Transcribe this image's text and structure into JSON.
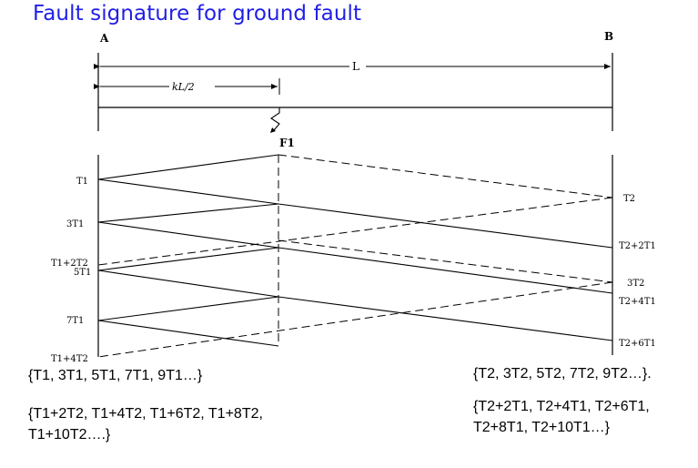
{
  "title": "Fault signature for ground fault",
  "endpoints": {
    "left": "A",
    "right": "B"
  },
  "line_length_label": "L",
  "fault_distance_label": "kL/2",
  "fault_label": "F1",
  "left_times": [
    "T1",
    "3T1",
    "T1+2T2",
    "5T1",
    "7T1",
    "T1+4T2"
  ],
  "right_times": [
    "T2",
    "T2+2T1",
    "3T2",
    "T2+4T1",
    "T2+6T1"
  ],
  "sequences": {
    "left_primary": "{T1, 3T1, 5T1, 7T1, 9T1…}",
    "left_secondary_line1": "{T1+2T2, T1+4T2, T1+6T2, T1+8T2,",
    "left_secondary_line2": "T1+10T2….}",
    "right_primary": "{T2, 3T2, 5T2, 7T2, 9T2…}.",
    "right_secondary_line1": "{T2+2T1, T2+4T1, T2+6T1,",
    "right_secondary_line2": "T2+8T1, T2+10T1…}"
  },
  "colors": {
    "title": "#1f1fe6",
    "lines": "#000000"
  }
}
